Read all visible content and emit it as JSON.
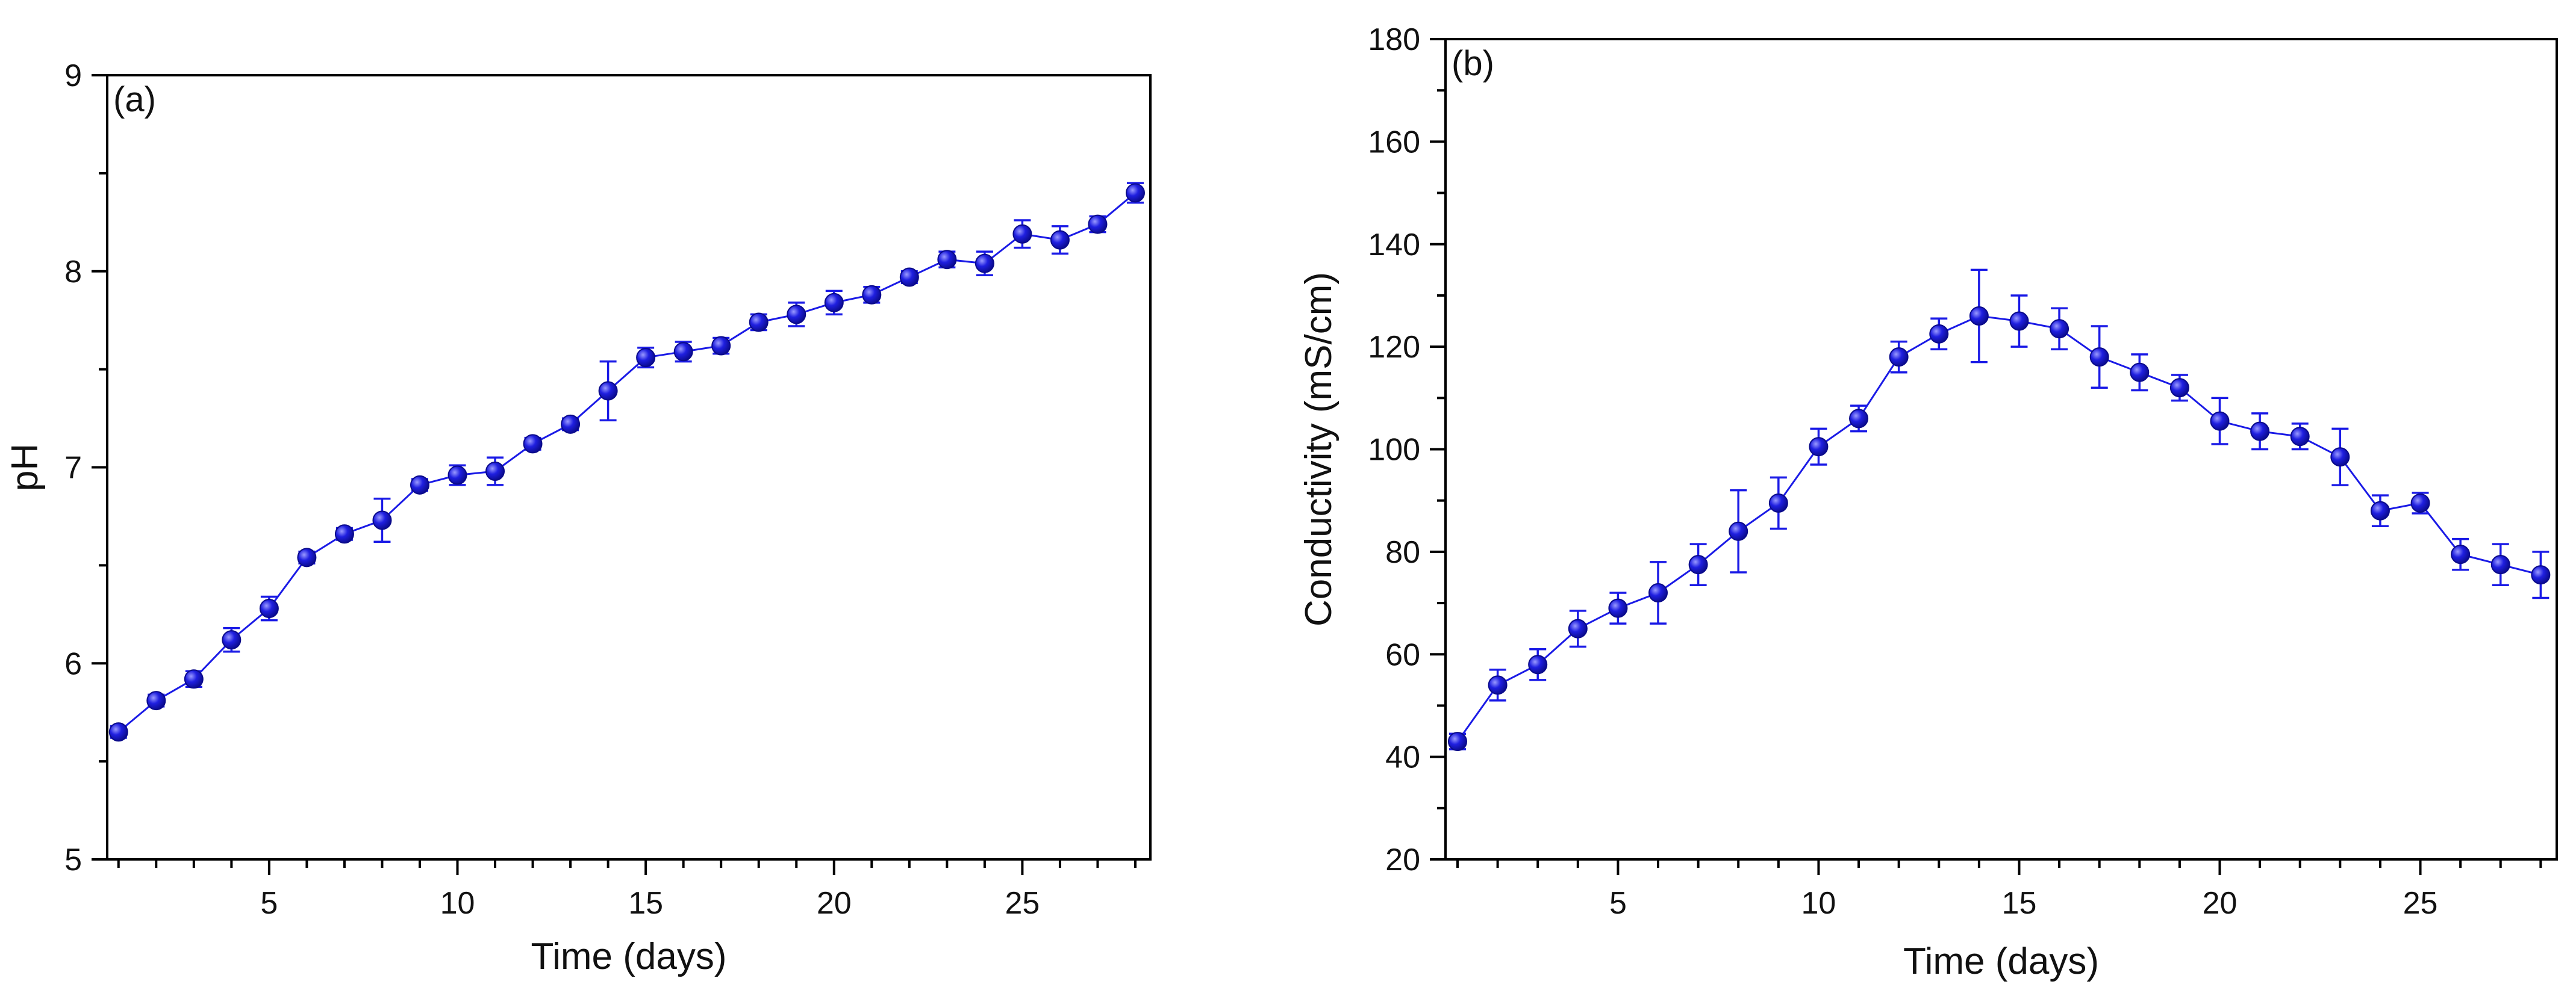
{
  "colors": {
    "series": "#1a1ae6",
    "marker_fill": "#1f1fe0",
    "axis": "#000000"
  },
  "chart_data": [
    {
      "type": "line",
      "panel_label": "(a)",
      "title": "",
      "xlabel": "Time (days)",
      "ylabel": "pH",
      "xlim": [
        0.7,
        28.4
      ],
      "ylim": [
        5,
        9
      ],
      "xticks": [
        5,
        10,
        15,
        20,
        25
      ],
      "xtick_labels": [
        "5",
        "10",
        "15",
        "20",
        "25"
      ],
      "yticks": [
        5,
        6,
        7,
        8,
        9
      ],
      "ytick_labels": [
        "5",
        "6",
        "7",
        "8",
        "9"
      ],
      "grid": false,
      "series": [
        {
          "name": "pH",
          "x": [
            1,
            2,
            3,
            4,
            5,
            6,
            7,
            8,
            9,
            10,
            11,
            12,
            13,
            14,
            15,
            16,
            17,
            18,
            19,
            20,
            21,
            22,
            23,
            24,
            25,
            26,
            27,
            28
          ],
          "values": [
            5.65,
            5.81,
            5.92,
            6.12,
            6.28,
            6.54,
            6.66,
            6.73,
            6.91,
            6.96,
            6.98,
            7.12,
            7.22,
            7.39,
            7.56,
            7.59,
            7.62,
            7.74,
            7.78,
            7.84,
            7.88,
            7.97,
            8.06,
            8.04,
            8.19,
            8.16,
            8.24,
            8.4
          ],
          "errors": [
            0.03,
            0.03,
            0.04,
            0.06,
            0.06,
            0.03,
            0.03,
            0.11,
            0.03,
            0.05,
            0.07,
            0.03,
            0.03,
            0.15,
            0.05,
            0.05,
            0.04,
            0.04,
            0.06,
            0.06,
            0.04,
            0.03,
            0.04,
            0.06,
            0.07,
            0.07,
            0.04,
            0.05
          ]
        }
      ]
    },
    {
      "type": "line",
      "panel_label": "(b)",
      "title": "",
      "xlabel": "Time (days)",
      "ylabel": "Conductivity (mS/cm)",
      "xlim": [
        0.7,
        28.4
      ],
      "ylim": [
        20,
        180
      ],
      "xticks": [
        5,
        10,
        15,
        20,
        25
      ],
      "xtick_labels": [
        "5",
        "10",
        "15",
        "20",
        "25"
      ],
      "yticks": [
        20,
        40,
        60,
        80,
        100,
        120,
        140,
        160,
        180
      ],
      "ytick_labels": [
        "20",
        "40",
        "60",
        "80",
        "100",
        "120",
        "140",
        "160",
        "180"
      ],
      "grid": false,
      "series": [
        {
          "name": "Conductivity",
          "x": [
            1,
            2,
            3,
            4,
            5,
            6,
            7,
            8,
            9,
            10,
            11,
            12,
            13,
            14,
            15,
            16,
            17,
            18,
            19,
            20,
            21,
            22,
            23,
            24,
            25,
            26,
            27,
            28
          ],
          "values": [
            43,
            54,
            58,
            65,
            69,
            72,
            77.5,
            84,
            89.5,
            100.5,
            106,
            118,
            122.5,
            126,
            125,
            123.5,
            118,
            115,
            112,
            105.5,
            103.5,
            102.5,
            98.5,
            88,
            89.5,
            79.5,
            77.5,
            75.5
          ],
          "errors": [
            1.5,
            3,
            3,
            3.5,
            3,
            6,
            4,
            8,
            5,
            3.5,
            2.5,
            3,
            3,
            9,
            5,
            4,
            6,
            3.5,
            2.5,
            4.5,
            3.5,
            2.5,
            5.5,
            3,
            2,
            3,
            4,
            4.5
          ]
        }
      ]
    }
  ]
}
